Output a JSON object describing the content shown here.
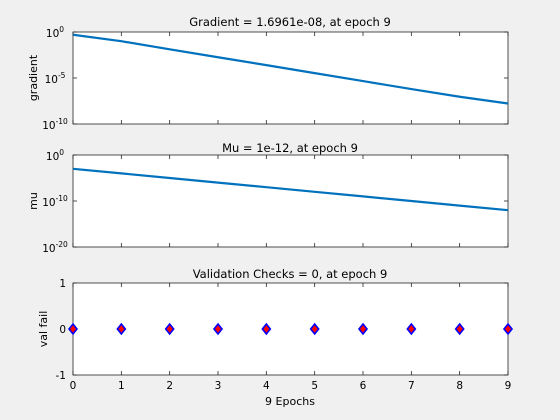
{
  "chart_data": [
    {
      "type": "line",
      "title": "Gradient = 1.6961e-08, at epoch 9",
      "xlabel": "",
      "ylabel": "gradient",
      "yscale": "log",
      "xlim": [
        0,
        9
      ],
      "ylim_exp": [
        -10,
        0
      ],
      "ytick_exponents": [
        0,
        -5,
        -10
      ],
      "xticks_labeled": false,
      "grid": false,
      "color": "#0072BD",
      "x": [
        0,
        1,
        2,
        3,
        4,
        5,
        6,
        7,
        8,
        9
      ],
      "y": [
        0.5,
        0.1,
        0.013,
        0.0018,
        0.00025,
        3.4e-05,
        4.6e-06,
        6.3e-07,
        9.2e-08,
        1.7e-08
      ]
    },
    {
      "type": "line",
      "title": "Mu = 1e-12, at epoch 9",
      "xlabel": "",
      "ylabel": "mu",
      "yscale": "log",
      "xlim": [
        0,
        9
      ],
      "ylim_exp": [
        -20,
        0
      ],
      "ytick_exponents": [
        0,
        -10,
        -20
      ],
      "xticks_labeled": false,
      "grid": false,
      "color": "#0072BD",
      "x": [
        0,
        1,
        2,
        3,
        4,
        5,
        6,
        7,
        8,
        9
      ],
      "y": [
        0.001,
        0.0001,
        1e-05,
        1e-06,
        1e-07,
        1e-08,
        1e-09,
        1e-10,
        1e-11,
        1e-12
      ]
    },
    {
      "type": "scatter",
      "title": "Validation Checks = 0, at epoch 9",
      "xlabel": "9 Epochs",
      "ylabel": "val fail",
      "yscale": "linear",
      "xlim": [
        0,
        9
      ],
      "ylim": [
        -1,
        1
      ],
      "yticks": [
        -1,
        0,
        1
      ],
      "xticks": [
        0,
        1,
        2,
        3,
        4,
        5,
        6,
        7,
        8,
        9
      ],
      "xticks_labeled": true,
      "grid": false,
      "marker": "diamond",
      "marker_fill": "#ff0000",
      "marker_edge": "#0000ff",
      "x": [
        0,
        1,
        2,
        3,
        4,
        5,
        6,
        7,
        8,
        9
      ],
      "y": [
        0,
        0,
        0,
        0,
        0,
        0,
        0,
        0,
        0,
        0
      ]
    }
  ]
}
